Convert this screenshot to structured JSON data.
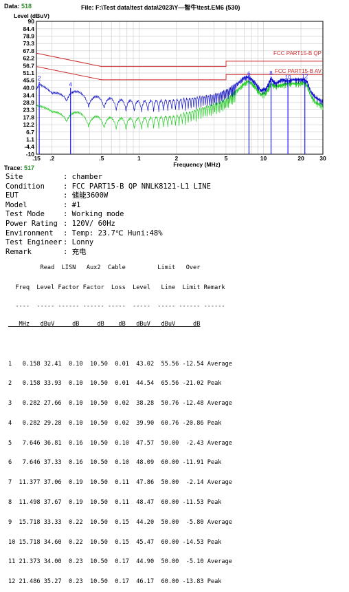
{
  "header": {
    "data_label": "Data:",
    "data_value": "518",
    "file_text": "File: F:\\Test data\\test data\\2023\\Y—智牛\\test.EM6 (530)"
  },
  "chart_data": {
    "type": "line",
    "title": "",
    "ylabel": "Level (dBuV)",
    "xlabel": "Frequency (MHz)",
    "xscale": "log",
    "xlim": [
      0.15,
      30
    ],
    "ylim": [
      -10,
      90
    ],
    "yticks": [
      90,
      84.4,
      78.9,
      73.3,
      67.8,
      62.2,
      56.7,
      51.1,
      45.6,
      40.0,
      34.4,
      28.9,
      23.3,
      17.8,
      12.2,
      6.7,
      1.1,
      -4.4,
      -10
    ],
    "ytick_labels": [
      "90",
      "84.4",
      "78.9",
      "73.3",
      "67.8",
      "62.2",
      "56.7",
      "51.1",
      "45.6",
      "40.0",
      "34.4",
      "28.9",
      "23.3",
      "17.8",
      "12.2",
      "6.7",
      "1.1",
      "-4.4",
      "-10"
    ],
    "xticks": [
      0.15,
      0.2,
      0.5,
      1,
      2,
      5,
      10,
      20,
      30
    ],
    "xtick_labels": [
      ".15",
      ".2",
      ".5",
      "1",
      "2",
      "5",
      "10",
      "20",
      "30"
    ],
    "grid": true,
    "colors": {
      "limit": "#cc2a2a",
      "peak": "#1010c8",
      "average": "#22cc22",
      "marker": "#1a1aff"
    },
    "limit_lines": [
      {
        "name": "FCC PART15-B QP",
        "points": [
          [
            0.15,
            66
          ],
          [
            0.5,
            56
          ],
          [
            5,
            56
          ],
          [
            5,
            60
          ],
          [
            30,
            60
          ]
        ]
      },
      {
        "name": "FCC PART15-B AV",
        "points": [
          [
            0.15,
            56
          ],
          [
            0.5,
            46
          ],
          [
            5,
            46
          ],
          [
            5,
            50
          ],
          [
            30,
            50
          ]
        ]
      }
    ],
    "series": [
      {
        "name": "",
        "role": "peak",
        "points": [
          [
            0.15,
            42
          ],
          [
            0.158,
            45
          ],
          [
            0.2,
            36
          ],
          [
            0.282,
            39
          ],
          [
            0.4,
            34
          ],
          [
            0.5,
            33
          ],
          [
            0.7,
            31
          ],
          [
            1,
            30
          ],
          [
            2,
            31
          ],
          [
            3,
            33
          ],
          [
            4,
            35
          ],
          [
            5,
            38
          ],
          [
            6,
            43
          ],
          [
            7,
            48.5
          ],
          [
            7.646,
            49
          ],
          [
            8.5,
            45
          ],
          [
            9.5,
            39
          ],
          [
            10.5,
            40
          ],
          [
            11.5,
            48
          ],
          [
            12.5,
            44
          ],
          [
            14,
            47
          ],
          [
            15.718,
            46
          ],
          [
            17.5,
            47
          ],
          [
            19.5,
            47
          ],
          [
            21.373,
            47
          ],
          [
            22.5,
            45
          ],
          [
            24,
            38
          ],
          [
            26,
            34
          ],
          [
            30,
            30
          ]
        ]
      },
      {
        "name": "",
        "role": "average",
        "points": [
          [
            0.15,
            30
          ],
          [
            0.2,
            22
          ],
          [
            0.282,
            23
          ],
          [
            0.4,
            19
          ],
          [
            0.5,
            18
          ],
          [
            0.7,
            17
          ],
          [
            1,
            17
          ],
          [
            2,
            19
          ],
          [
            3,
            24
          ],
          [
            4,
            28
          ],
          [
            5,
            31
          ],
          [
            6,
            38
          ],
          [
            7,
            44
          ],
          [
            7.646,
            46
          ],
          [
            8.5,
            42
          ],
          [
            9.5,
            36
          ],
          [
            10.5,
            37
          ],
          [
            11.5,
            44
          ],
          [
            12.5,
            42
          ],
          [
            14,
            43
          ],
          [
            15.718,
            44
          ],
          [
            17.5,
            44
          ],
          [
            19.5,
            44
          ],
          [
            21.373,
            45
          ],
          [
            22.5,
            42
          ],
          [
            24,
            35
          ],
          [
            26,
            30
          ],
          [
            30,
            27
          ]
        ]
      }
    ],
    "markers": [
      {
        "label": "2",
        "x": 0.158,
        "y": 44.54
      },
      {
        "label": "4",
        "x": 0.282,
        "y": 39.9
      },
      {
        "label": "6",
        "x": 7.646,
        "y": 48.09
      },
      {
        "label": "8",
        "x": 11.498,
        "y": 48.47
      },
      {
        "label": "10",
        "x": 15.718,
        "y": 45.47
      },
      {
        "label": "12",
        "x": 21.486,
        "y": 46.17
      }
    ]
  },
  "trace": {
    "label": "Trace:",
    "value": "517"
  },
  "info": [
    {
      "key": "Site",
      "value": ": chamber"
    },
    {
      "key": "Condition",
      "value": ": FCC PART15-B QP NNLK8121-L1 LINE"
    },
    {
      "key": "EUT",
      "value": ": 储能3600W"
    },
    {
      "key": "Model",
      "value": ": #1"
    },
    {
      "key": "Test Mode",
      "value": ": Working mode"
    },
    {
      "key": "Power Rating",
      "value": ": 120V/ 60Hz"
    },
    {
      "key": "Environment",
      "value": ": Temp: 23.7℃ Huni:48%"
    },
    {
      "key": "Test Engineer",
      "value": ": Lonny"
    },
    {
      "key": "Remark",
      "value": ": 充电"
    }
  ],
  "table": {
    "header1": "         Read  LISN   Aux2  Cable         Limit   Over",
    "header2": "  Freq  Level Factor Factor  Loss  Level   Line  Limit Remark",
    "divider": "  ----  ----- ------ ------ -----  -----  ----- ------ ------",
    "units": "   MHz   dBuV     dB     dB    dB   dBuV   dBuV     dB",
    "rows": [
      "1   0.158 32.41  0.10  10.50  0.01  43.02  55.56 -12.54 Average",
      "2   0.158 33.93  0.10  10.50  0.01  44.54  65.56 -21.02 Peak",
      "3   0.282 27.66  0.10  10.50  0.02  38.28  50.76 -12.48 Average",
      "4   0.282 29.28  0.10  10.50  0.02  39.90  60.76 -20.86 Peak",
      "5   7.646 36.81  0.16  10.50  0.10  47.57  50.00  -2.43 Average",
      "6   7.646 37.33  0.16  10.50  0.10  48.09  60.00 -11.91 Peak",
      "7  11.377 37.06  0.19  10.50  0.11  47.86  50.00  -2.14 Average",
      "8  11.498 37.67  0.19  10.50  0.11  48.47  60.00 -11.53 Peak",
      "9  15.718 33.33  0.22  10.50  0.15  44.20  50.00  -5.80 Average",
      "10 15.718 34.60  0.22  10.50  0.15  45.47  60.00 -14.53 Peak",
      "11 21.373 34.00  0.23  10.50  0.17  44.90  50.00  -5.10 Average",
      "12 21.486 35.27  0.23  10.50  0.17  46.17  60.00 -13.83 Peak"
    ]
  }
}
